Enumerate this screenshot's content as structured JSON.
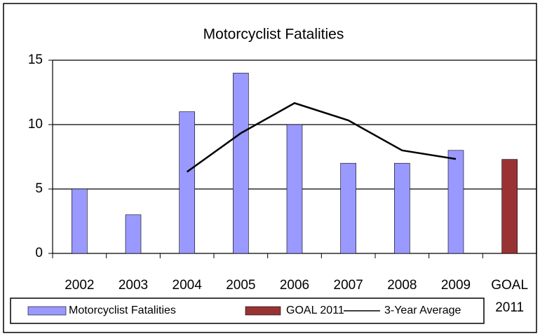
{
  "chart_data": {
    "type": "bar",
    "title": "Motorcyclist Fatalities",
    "categories": [
      "2002",
      "2003",
      "2004",
      "2005",
      "2006",
      "2007",
      "2008",
      "2009",
      "GOAL 2011"
    ],
    "series": [
      {
        "name": "Motorcyclist Fatalities",
        "type": "bar",
        "color": "#9999ff",
        "values": [
          5,
          3,
          11,
          14,
          10,
          7,
          7,
          8,
          null
        ]
      },
      {
        "name": "GOAL 2011",
        "type": "bar",
        "color": "#993333",
        "values": [
          null,
          null,
          null,
          null,
          null,
          null,
          null,
          null,
          7.3
        ]
      },
      {
        "name": "3-Year Average",
        "type": "line",
        "color": "#000000",
        "values": [
          null,
          null,
          6.33,
          9.33,
          11.67,
          10.33,
          8,
          7.33,
          null
        ]
      }
    ],
    "ylim": [
      0,
      15
    ],
    "yticks": [
      0,
      5,
      10,
      15
    ],
    "grid": true,
    "legend": "bottom"
  }
}
